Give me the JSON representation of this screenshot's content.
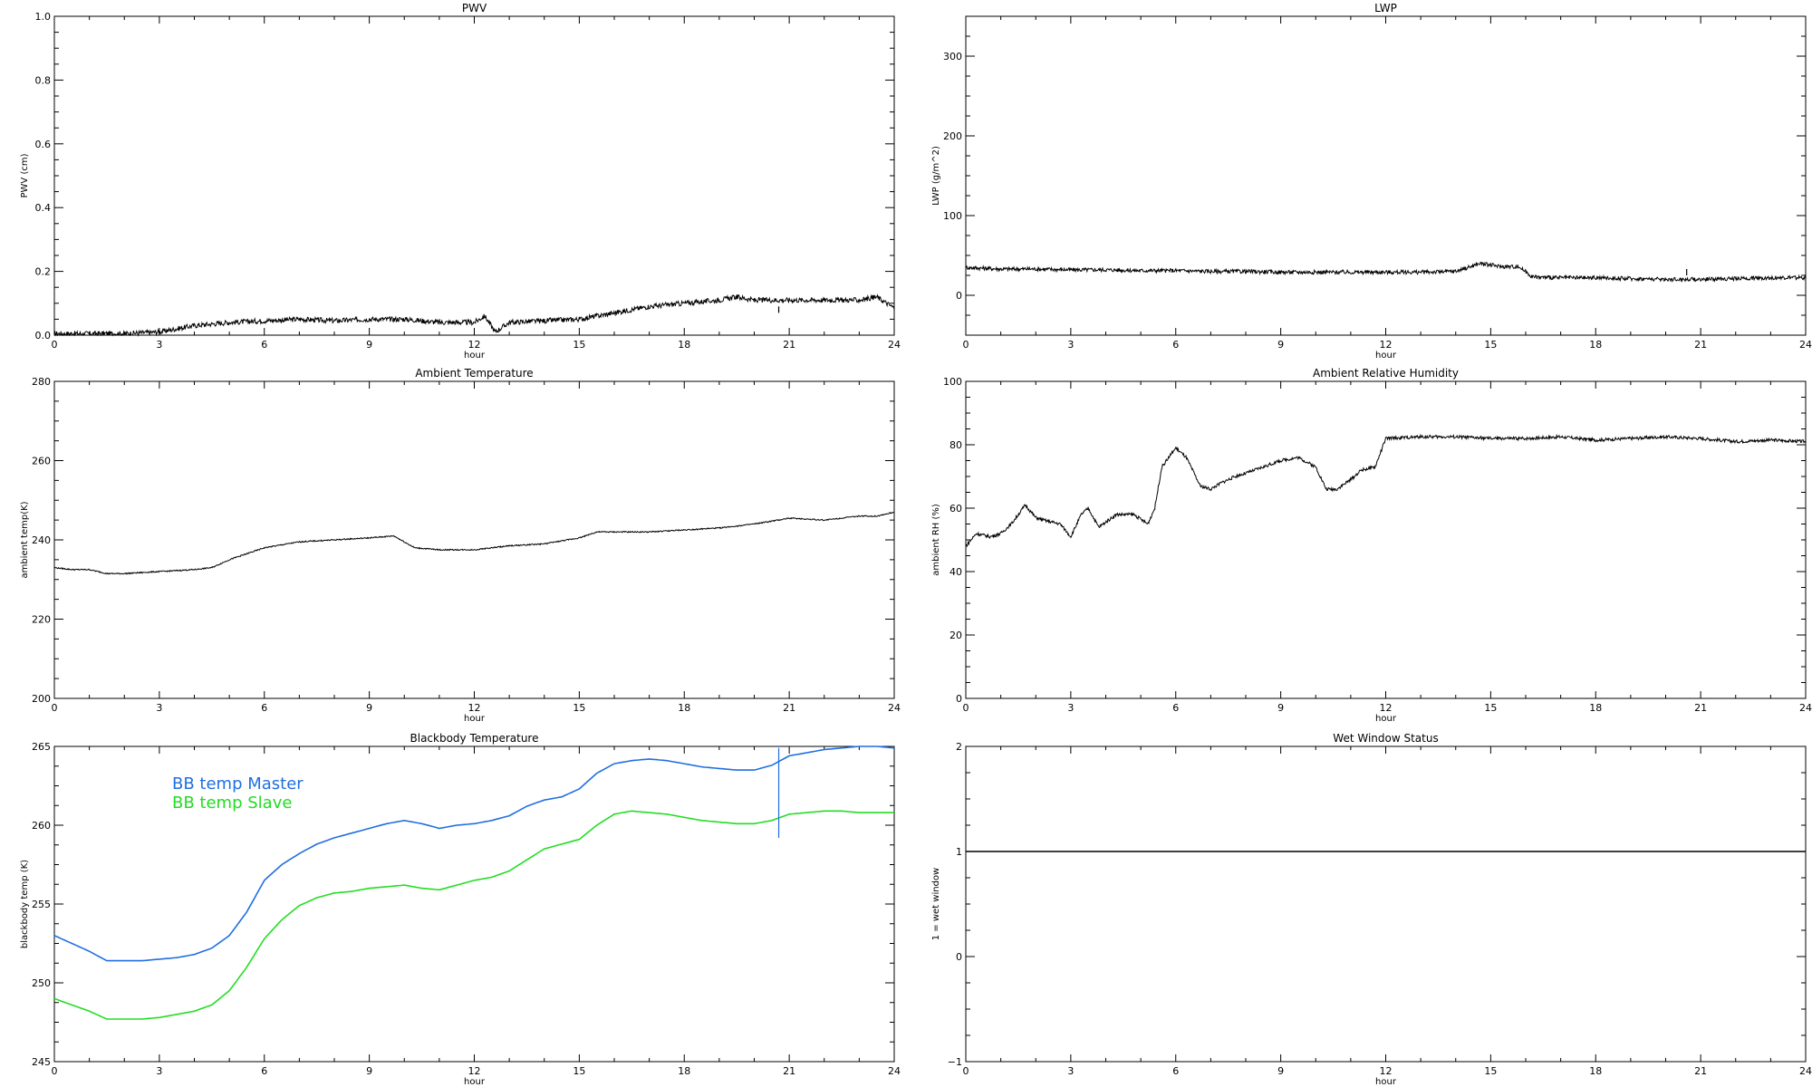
{
  "colors": {
    "axis": "#000000",
    "series_default": "#000000",
    "bb_master": "#1f6fe0",
    "bb_slave": "#22dd22"
  },
  "chart_data": [
    {
      "id": "pwv",
      "type": "line",
      "title": "PWV",
      "xlabel": "hour",
      "ylabel": "PWV (cm)",
      "xlim": [
        0,
        24
      ],
      "ylim": [
        0.0,
        1.0
      ],
      "xticks": [
        0,
        3,
        6,
        9,
        12,
        15,
        18,
        21,
        24
      ],
      "yticks": [
        0.0,
        0.2,
        0.4,
        0.6,
        0.8,
        1.0
      ],
      "ytick_labels": [
        "0.0",
        "0.2",
        "0.4",
        "0.6",
        "0.8",
        "1.0"
      ],
      "noise": 0.008,
      "series": [
        {
          "color": "#000000",
          "x": [
            0,
            1,
            2,
            3,
            4,
            5,
            6,
            7,
            8,
            9,
            10,
            11,
            12,
            12.3,
            12.6,
            13,
            14,
            15,
            16,
            17,
            18,
            19,
            19.5,
            20,
            21,
            22,
            23,
            23.5,
            24
          ],
          "y": [
            0.005,
            0.005,
            0.005,
            0.01,
            0.03,
            0.04,
            0.045,
            0.05,
            0.045,
            0.05,
            0.05,
            0.04,
            0.04,
            0.06,
            0.01,
            0.04,
            0.045,
            0.05,
            0.07,
            0.09,
            0.1,
            0.11,
            0.12,
            0.11,
            0.11,
            0.11,
            0.11,
            0.12,
            0.085
          ]
        }
      ],
      "glitches": [
        {
          "x": 20.7,
          "y0": 0.09,
          "y1": 0.07
        }
      ]
    },
    {
      "id": "lwp",
      "type": "line",
      "title": "LWP",
      "xlabel": "hour",
      "ylabel": "LWP (g/m^2)",
      "xlim": [
        0,
        24
      ],
      "ylim": [
        -50,
        350
      ],
      "xticks": [
        0,
        3,
        6,
        9,
        12,
        15,
        18,
        21,
        24
      ],
      "yticks": [
        0,
        100,
        200,
        300
      ],
      "ytick_labels": [
        "0",
        "100",
        "200",
        "300"
      ],
      "noise": 2.5,
      "series": [
        {
          "color": "#000000",
          "x": [
            0,
            1,
            2,
            3,
            4,
            5,
            6,
            7,
            8,
            9,
            10,
            11,
            12,
            13,
            14,
            14.7,
            15.3,
            15.8,
            16.2,
            17,
            18,
            19,
            20,
            21,
            22,
            23,
            24
          ],
          "y": [
            35,
            33,
            33,
            32,
            32,
            31,
            31,
            30,
            30,
            29,
            29,
            29,
            29,
            29,
            30,
            40,
            36,
            36,
            23,
            22,
            22,
            21,
            20,
            20,
            21,
            22,
            22
          ]
        }
      ],
      "glitches": [
        {
          "x": 20.6,
          "y0": 25,
          "y1": 33
        }
      ]
    },
    {
      "id": "ambient_temp",
      "type": "line",
      "title": "Ambient Temperature",
      "xlabel": "hour",
      "ylabel": "ambient temp(K)",
      "xlim": [
        0,
        24
      ],
      "ylim": [
        200,
        280
      ],
      "xticks": [
        0,
        3,
        6,
        9,
        12,
        15,
        18,
        21,
        24
      ],
      "yticks": [
        200,
        220,
        240,
        260,
        280
      ],
      "ytick_labels": [
        "200",
        "220",
        "240",
        "260",
        "280"
      ],
      "noise": 0.15,
      "series": [
        {
          "color": "#000000",
          "x": [
            0,
            0.5,
            1,
            1.5,
            2,
            3,
            4,
            4.5,
            5,
            6,
            7,
            8,
            9,
            9.7,
            10.3,
            11,
            12,
            13,
            14,
            15,
            15.5,
            16,
            17,
            18,
            19,
            20,
            20.7,
            21,
            22,
            23,
            23.5,
            24
          ],
          "y": [
            233,
            232.5,
            232.5,
            231.5,
            231.5,
            232,
            232.5,
            233,
            235,
            238,
            239.5,
            240,
            240.5,
            241,
            238,
            237.5,
            237.5,
            238.5,
            239,
            240.5,
            242,
            242,
            242,
            242.5,
            243,
            244,
            245,
            245.5,
            245,
            246,
            246,
            247
          ]
        }
      ],
      "glitches": []
    },
    {
      "id": "ambient_rh",
      "type": "line",
      "title": "Ambient Relative Humidity",
      "xlabel": "hour",
      "ylabel": "ambient RH (%)",
      "xlim": [
        0,
        24
      ],
      "ylim": [
        0,
        100
      ],
      "xticks": [
        0,
        3,
        6,
        9,
        12,
        15,
        18,
        21,
        24
      ],
      "yticks": [
        0,
        20,
        40,
        60,
        80,
        100
      ],
      "ytick_labels": [
        "0",
        "20",
        "40",
        "60",
        "80",
        "100"
      ],
      "noise": 0.5,
      "series": [
        {
          "color": "#000000",
          "x": [
            0,
            0.3,
            0.7,
            1,
            1.3,
            1.7,
            2,
            2.3,
            2.7,
            3,
            3.3,
            3.5,
            3.8,
            4.3,
            4.8,
            5.2,
            5.4,
            5.6,
            6,
            6.3,
            6.7,
            7,
            7.3,
            7.7,
            8,
            8.5,
            9,
            9.5,
            10,
            10.3,
            10.6,
            11,
            11.3,
            11.7,
            12,
            13,
            14,
            15,
            16,
            17,
            18,
            19,
            20,
            21,
            22,
            23,
            24
          ],
          "y": [
            48,
            52,
            51,
            52,
            55,
            61,
            57,
            56,
            55,
            51,
            58,
            60,
            54,
            58,
            58,
            55,
            60,
            73,
            79,
            76,
            67,
            66,
            68,
            70,
            71,
            73,
            75,
            76,
            73,
            66,
            66,
            69,
            72,
            73,
            82,
            82.5,
            82.5,
            82,
            82,
            82.5,
            81.5,
            82,
            82.5,
            82,
            81,
            81.5,
            81
          ]
        }
      ],
      "glitches": []
    },
    {
      "id": "bb_temp",
      "type": "line",
      "title": "Blackbody Temperature",
      "xlabel": "hour",
      "ylabel": "blackbody temp (K)",
      "xlim": [
        0,
        24
      ],
      "ylim": [
        245,
        265
      ],
      "xticks": [
        0,
        3,
        6,
        9,
        12,
        15,
        18,
        21,
        24
      ],
      "yticks": [
        245,
        250,
        255,
        260,
        265
      ],
      "ytick_labels": [
        "245",
        "250",
        "255",
        "260",
        "265"
      ],
      "noise": 0.0,
      "legend": {
        "placement": "top-left",
        "entries": [
          {
            "label": "BB temp Master",
            "color": "#1f6fe0"
          },
          {
            "label": "BB temp Slave",
            "color": "#22dd22"
          }
        ]
      },
      "series": [
        {
          "name": "BB temp Master",
          "color": "#1f6fe0",
          "x": [
            0,
            0.5,
            1,
            1.5,
            2,
            2.5,
            3,
            3.5,
            4,
            4.5,
            5,
            5.5,
            6,
            6.5,
            7,
            7.5,
            8,
            8.5,
            9,
            9.5,
            10,
            10.5,
            11,
            11.5,
            12,
            12.5,
            13,
            13.5,
            14,
            14.5,
            15,
            15.5,
            16,
            16.5,
            17,
            17.5,
            18,
            18.5,
            19,
            19.5,
            20,
            20.5,
            21,
            21.5,
            22,
            22.5,
            23,
            23.5,
            24
          ],
          "y": [
            253,
            252.5,
            252,
            251.4,
            251.4,
            251.4,
            251.5,
            251.6,
            251.8,
            252.2,
            253,
            254.5,
            256.5,
            257.5,
            258.2,
            258.8,
            259.2,
            259.5,
            259.8,
            260.1,
            260.3,
            260.1,
            259.8,
            260,
            260.1,
            260.3,
            260.6,
            261.2,
            261.6,
            261.8,
            262.3,
            263.3,
            263.9,
            264.1,
            264.2,
            264.1,
            263.9,
            263.7,
            263.6,
            263.5,
            263.5,
            263.8,
            264.4,
            264.6,
            264.8,
            264.9,
            265,
            265,
            264.9
          ]
        },
        {
          "name": "BB temp Slave",
          "color": "#22dd22",
          "x": [
            0,
            0.5,
            1,
            1.5,
            2,
            2.5,
            3,
            3.5,
            4,
            4.5,
            5,
            5.5,
            6,
            6.5,
            7,
            7.5,
            8,
            8.5,
            9,
            9.5,
            10,
            10.5,
            11,
            11.5,
            12,
            12.5,
            13,
            13.5,
            14,
            14.5,
            15,
            15.5,
            16,
            16.5,
            17,
            17.5,
            18,
            18.5,
            19,
            19.5,
            20,
            20.5,
            21,
            21.5,
            22,
            22.5,
            23,
            23.5,
            24
          ],
          "y": [
            249,
            248.6,
            248.2,
            247.7,
            247.7,
            247.7,
            247.8,
            248,
            248.2,
            248.6,
            249.5,
            251,
            252.8,
            254,
            254.9,
            255.4,
            255.7,
            255.8,
            256,
            256.1,
            256.2,
            256,
            255.9,
            256.2,
            256.5,
            256.7,
            257.1,
            257.8,
            258.5,
            258.8,
            259.1,
            260,
            260.7,
            260.9,
            260.8,
            260.7,
            260.5,
            260.3,
            260.2,
            260.1,
            260.1,
            260.3,
            260.7,
            260.8,
            260.9,
            260.9,
            260.8,
            260.8,
            260.8
          ]
        }
      ],
      "glitches": [
        {
          "x": 20.7,
          "y0": 259.2,
          "y1": 264.9,
          "color": "#1f6fe0"
        }
      ]
    },
    {
      "id": "wet_window",
      "type": "line",
      "title": "Wet Window Status",
      "xlabel": "hour",
      "ylabel": "1 = wet window",
      "xlim": [
        0,
        24
      ],
      "ylim": [
        -1,
        2
      ],
      "xticks": [
        0,
        3,
        6,
        9,
        12,
        15,
        18,
        21,
        24
      ],
      "yticks": [
        -1,
        0,
        1,
        2
      ],
      "ytick_labels": [
        "−1",
        "0",
        "1",
        "2"
      ],
      "noise": 0.0,
      "series": [
        {
          "color": "#000000",
          "x": [
            0,
            24
          ],
          "y": [
            1,
            1
          ]
        }
      ],
      "glitches": []
    }
  ]
}
